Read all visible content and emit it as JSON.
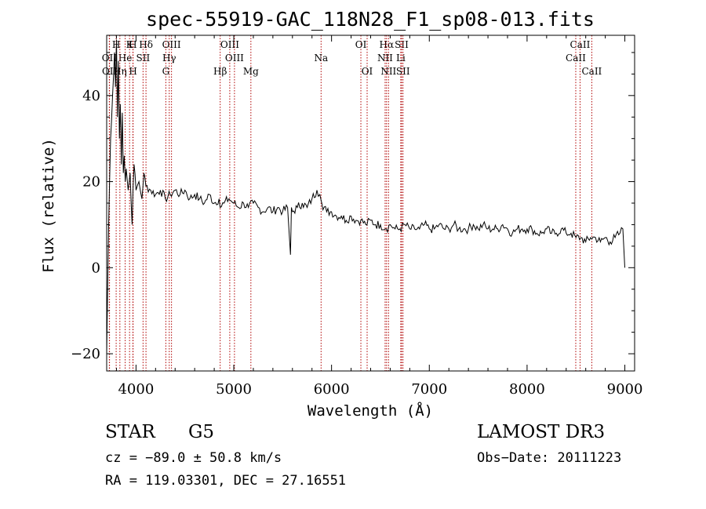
{
  "chart_data": {
    "type": "line",
    "title": "spec-55919-GAC_118N28_F1_sp08-013.fits",
    "xlabel": "Wavelength (Å)",
    "ylabel": "Flux (relative)",
    "xlim": [
      3700,
      9100
    ],
    "ylim": [
      -24,
      54
    ],
    "x_ticks": [
      4000,
      5000,
      6000,
      7000,
      8000,
      9000
    ],
    "y_ticks": [
      -20,
      0,
      20,
      40
    ],
    "series": [
      {
        "name": "spectrum",
        "x": [
          3700,
          3720,
          3740,
          3760,
          3780,
          3790,
          3800,
          3810,
          3820,
          3830,
          3840,
          3850,
          3860,
          3870,
          3880,
          3890,
          3900,
          3920,
          3940,
          3960,
          3970,
          3980,
          4000,
          4030,
          4060,
          4080,
          4100,
          4150,
          4200,
          4250,
          4300,
          4350,
          4400,
          4450,
          4500,
          4550,
          4600,
          4650,
          4700,
          4750,
          4800,
          4850,
          4860,
          4900,
          4950,
          5000,
          5050,
          5100,
          5150,
          5200,
          5250,
          5300,
          5350,
          5400,
          5450,
          5500,
          5550,
          5580,
          5590,
          5600,
          5650,
          5700,
          5750,
          5800,
          5850,
          5880,
          5890,
          5900,
          5950,
          6000,
          6050,
          6100,
          6150,
          6200,
          6250,
          6300,
          6350,
          6400,
          6450,
          6500,
          6550,
          6560,
          6600,
          6650,
          6700,
          6750,
          6800,
          6850,
          6900,
          6950,
          7000,
          7050,
          7100,
          7150,
          7200,
          7250,
          7300,
          7350,
          7400,
          7450,
          7500,
          7550,
          7600,
          7650,
          7700,
          7750,
          7800,
          7850,
          7900,
          7950,
          8000,
          8050,
          8100,
          8150,
          8200,
          8250,
          8300,
          8350,
          8400,
          8450,
          8500,
          8550,
          8600,
          8650,
          8700,
          8750,
          8800,
          8850,
          8900,
          8950,
          8980,
          9000
        ],
        "y": [
          -20,
          10,
          30,
          40,
          50,
          42,
          53,
          35,
          48,
          30,
          38,
          24,
          36,
          22,
          26,
          20,
          23,
          18,
          22,
          10,
          19,
          24,
          18,
          20,
          16,
          22,
          19,
          18,
          17,
          18,
          16,
          17,
          18,
          17,
          18,
          16,
          17,
          16,
          15,
          17,
          15,
          16,
          14,
          15,
          16,
          15,
          14,
          15,
          14,
          15,
          14,
          13,
          14,
          13,
          14,
          13,
          14,
          3,
          14,
          13,
          14,
          15,
          14,
          16,
          18,
          17,
          16,
          15,
          13,
          13,
          12,
          12,
          11,
          12,
          11,
          11,
          10,
          11,
          10,
          10,
          9,
          9,
          10,
          9,
          9,
          10,
          9,
          9,
          9,
          10,
          9,
          9,
          10,
          9,
          9,
          10,
          9,
          9,
          9,
          10,
          9,
          10,
          9,
          9,
          9,
          10,
          9,
          8,
          9,
          9,
          9,
          9,
          8,
          8,
          9,
          8,
          8,
          9,
          8,
          8,
          7,
          7,
          6,
          7,
          7,
          6,
          7,
          6,
          7,
          8,
          9,
          0
        ]
      }
    ],
    "spectral_lines": [
      {
        "label": "H",
        "wavelength": 3797,
        "row": 1
      },
      {
        "label": "K",
        "wavelength": 3934,
        "row": 1
      },
      {
        "label": "H",
        "wavelength": 3968,
        "row": 1
      },
      {
        "label": "Hδ",
        "wavelength": 4102,
        "row": 1
      },
      {
        "label": "OIII",
        "wavelength": 4363,
        "row": 1
      },
      {
        "label": "OIII",
        "wavelength": 4959,
        "row": 1
      },
      {
        "label": "OI",
        "wavelength": 6300,
        "row": 1
      },
      {
        "label": "Hα",
        "wavelength": 6563,
        "row": 1
      },
      {
        "label": "SII",
        "wavelength": 6717,
        "row": 1
      },
      {
        "label": "CaII",
        "wavelength": 8542,
        "row": 1
      },
      {
        "label": "OII",
        "wavelength": 3727,
        "row": 2
      },
      {
        "label": "He",
        "wavelength": 3889,
        "row": 2
      },
      {
        "label": "SII",
        "wavelength": 4072,
        "row": 2
      },
      {
        "label": "Hγ",
        "wavelength": 4340,
        "row": 2
      },
      {
        "label": "OIII",
        "wavelength": 5007,
        "row": 2
      },
      {
        "label": "Na",
        "wavelength": 5893,
        "row": 2
      },
      {
        "label": "NII",
        "wavelength": 6548,
        "row": 2
      },
      {
        "label": "Li",
        "wavelength": 6708,
        "row": 2
      },
      {
        "label": "CaII",
        "wavelength": 8498,
        "row": 2
      },
      {
        "label": "OII",
        "wavelength": 3729,
        "row": 3
      },
      {
        "label": "Hη",
        "wavelength": 3835,
        "row": 3
      },
      {
        "label": "H",
        "wavelength": 3970,
        "row": 3
      },
      {
        "label": "G",
        "wavelength": 4305,
        "row": 3
      },
      {
        "label": "Hβ",
        "wavelength": 4861,
        "row": 3
      },
      {
        "label": "Mg",
        "wavelength": 5175,
        "row": 3
      },
      {
        "label": "OI",
        "wavelength": 6364,
        "row": 3
      },
      {
        "label": "NII",
        "wavelength": 6583,
        "row": 3
      },
      {
        "label": "SII",
        "wavelength": 6731,
        "row": 3
      },
      {
        "label": "CaII",
        "wavelength": 8662,
        "row": 3
      }
    ]
  },
  "info": {
    "object_class": "STAR",
    "subclass": "G5",
    "survey": "LAMOST DR3",
    "redshift": "cz = −89.0 ± 50.8 km/s",
    "coordinates": "RA = 119.03301, DEC =  27.16551",
    "obs_date": "Obs−Date: 20111223"
  },
  "colors": {
    "line_marker": "#b00000",
    "spectrum": "#000000"
  }
}
